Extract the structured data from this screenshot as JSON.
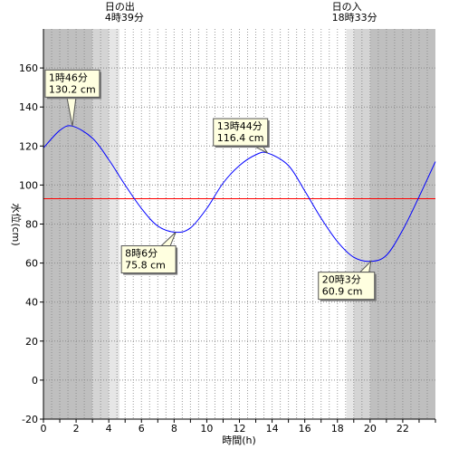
{
  "chart_data": {
    "type": "line",
    "title": "",
    "xlabel": "時間(h)",
    "ylabel": "水位(cm)",
    "xlim": [
      0,
      24
    ],
    "ylim": [
      -20,
      180
    ],
    "x_ticks": [
      0,
      2,
      4,
      6,
      8,
      10,
      12,
      14,
      16,
      18,
      20,
      22
    ],
    "y_ticks": [
      -20,
      0,
      20,
      40,
      60,
      80,
      100,
      120,
      140,
      160
    ],
    "grid": true,
    "legend": "none",
    "reference_line": {
      "y": 93,
      "color": "#ff0000"
    },
    "sun_events": [
      {
        "label": "日の出",
        "time": "4時39分",
        "x": 4.65
      },
      {
        "label": "日の入",
        "time": "18時33分",
        "x": 18.55
      }
    ],
    "shading": [
      {
        "from": 0,
        "to": 3.0,
        "fill": "#bfbfbf"
      },
      {
        "from": 3.0,
        "to": 4.0,
        "fill": "#d4d4d4"
      },
      {
        "from": 4.0,
        "to": 4.65,
        "fill": "#e6e6e6"
      },
      {
        "from": 18.55,
        "to": 19.0,
        "fill": "#e6e6e6"
      },
      {
        "from": 19.0,
        "to": 20.0,
        "fill": "#d4d4d4"
      },
      {
        "from": 20.0,
        "to": 24,
        "fill": "#bfbfbf"
      }
    ],
    "series": [
      {
        "color": "#0000ff",
        "x": [
          0,
          1,
          1.77,
          3,
          4,
          5,
          6,
          7,
          8.1,
          9,
          10,
          11,
          12,
          13,
          13.73,
          15,
          16,
          17,
          18,
          19,
          20.05,
          21,
          22,
          23,
          24
        ],
        "y": [
          119,
          128,
          130.2,
          124,
          113,
          100,
          88,
          79,
          75.8,
          78,
          88,
          101,
          110,
          115.5,
          116.4,
          110,
          97,
          83,
          71,
          63,
          60.9,
          64,
          77,
          94,
          112
        ]
      }
    ],
    "annotations": [
      {
        "time": "1時46分",
        "value": "130.2 cm",
        "x": 1.77,
        "y": 130.2
      },
      {
        "time": "8時6分",
        "value": "75.8 cm",
        "x": 8.1,
        "y": 75.8
      },
      {
        "time": "13時44分",
        "value": "116.4 cm",
        "x": 13.73,
        "y": 116.4
      },
      {
        "time": "20時3分",
        "value": "60.9 cm",
        "x": 20.05,
        "y": 60.9
      }
    ]
  }
}
